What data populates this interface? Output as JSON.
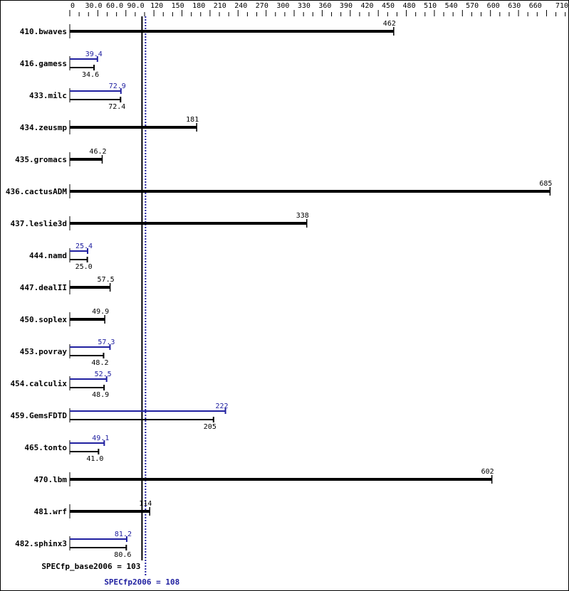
{
  "chart_data": {
    "type": "bar",
    "orientation": "horizontal",
    "xlim": [
      0,
      710
    ],
    "x_tick_labels": [
      "0",
      "30.0",
      "60.0",
      "90.0",
      "120",
      "150",
      "180",
      "210",
      "240",
      "270",
      "300",
      "330",
      "360",
      "390",
      "420",
      "450",
      "480",
      "510",
      "540",
      "570",
      "600",
      "630",
      "660",
      "710"
    ],
    "x_tick_values": [
      0,
      30,
      60,
      90,
      120,
      150,
      180,
      210,
      240,
      270,
      300,
      330,
      360,
      390,
      420,
      450,
      480,
      510,
      540,
      570,
      600,
      630,
      660,
      710
    ],
    "colors": {
      "base": "#000000",
      "peak": "#2020a0"
    },
    "benchmarks": [
      {
        "name": "410.bwaves",
        "base": 462,
        "base_label": "462"
      },
      {
        "name": "416.gamess",
        "base": 34.6,
        "base_label": "34.6",
        "peak": 39.4,
        "peak_label": "39.4"
      },
      {
        "name": "433.milc",
        "base": 72.4,
        "base_label": "72.4",
        "peak": 72.9,
        "peak_label": "72.9"
      },
      {
        "name": "434.zeusmp",
        "base": 181,
        "base_label": "181"
      },
      {
        "name": "435.gromacs",
        "base": 46.2,
        "base_label": "46.2"
      },
      {
        "name": "436.cactusADM",
        "base": 685,
        "base_label": "685"
      },
      {
        "name": "437.leslie3d",
        "base": 338,
        "base_label": "338"
      },
      {
        "name": "444.namd",
        "base": 25.0,
        "base_label": "25.0",
        "peak": 25.4,
        "peak_label": "25.4"
      },
      {
        "name": "447.dealII",
        "base": 57.5,
        "base_label": "57.5"
      },
      {
        "name": "450.soplex",
        "base": 49.9,
        "base_label": "49.9"
      },
      {
        "name": "453.povray",
        "base": 48.2,
        "base_label": "48.2",
        "peak": 57.3,
        "peak_label": "57.3"
      },
      {
        "name": "454.calculix",
        "base": 48.9,
        "base_label": "48.9",
        "peak": 52.5,
        "peak_label": "52.5"
      },
      {
        "name": "459.GemsFDTD",
        "base": 205,
        "base_label": "205",
        "peak": 222,
        "peak_label": "222"
      },
      {
        "name": "465.tonto",
        "base": 41.0,
        "base_label": "41.0",
        "peak": 49.1,
        "peak_label": "49.1"
      },
      {
        "name": "470.lbm",
        "base": 602,
        "base_label": "602"
      },
      {
        "name": "481.wrf",
        "base": 114,
        "base_label": "114"
      },
      {
        "name": "482.sphinx3",
        "base": 80.6,
        "base_label": "80.6",
        "peak": 81.2,
        "peak_label": "81.2"
      }
    ],
    "reference_lines": [
      {
        "label": "SPECfp_base2006 = 103",
        "value": 103,
        "style": "solid",
        "color": "#000000"
      },
      {
        "label": "SPECfp2006 = 108",
        "value": 108,
        "style": "dotted",
        "color": "#2020a0"
      }
    ]
  }
}
